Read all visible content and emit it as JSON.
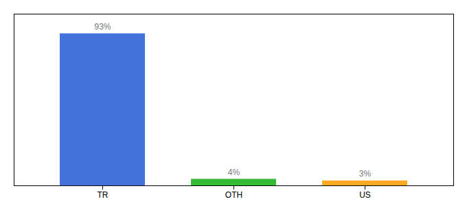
{
  "chart_data": {
    "type": "bar",
    "categories": [
      "TR",
      "OTH",
      "US"
    ],
    "values": [
      93,
      4,
      3
    ],
    "value_labels": [
      "93%",
      "4%",
      "3%"
    ],
    "colors": [
      "#4472db",
      "#33bb33",
      "#ffaa22"
    ],
    "ylim": [
      0,
      105
    ],
    "yticks": [],
    "tick_labels": "x",
    "data_labels": true
  }
}
